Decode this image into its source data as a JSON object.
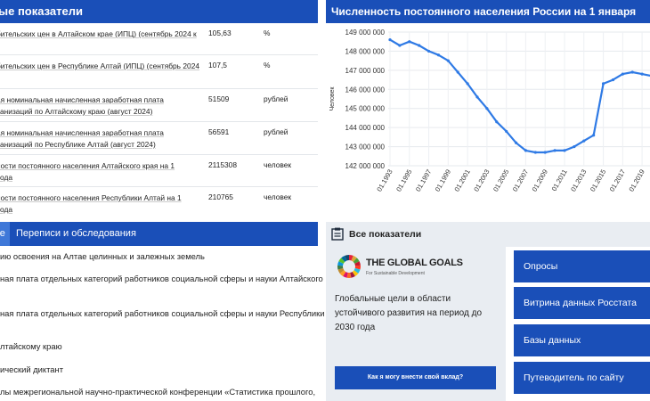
{
  "indicators": {
    "header": "ые показатели",
    "rows": [
      {
        "name_line1": "бительских цен в Алтайском крае (ИПЦ) (сентябрь 2024 к",
        "name_line2": "",
        "value": "105,63",
        "unit": "%"
      },
      {
        "name_line1": "бительских цен в Республике Алтай (ИПЦ) (сентябрь 2024",
        "name_line2": "",
        "value": "107,5",
        "unit": "%"
      },
      {
        "name_line1": "ая номинальная начисленная заработная плата",
        "name_line2": "анизаций по Алтайскому краю (август 2024)",
        "value": "51509",
        "unit": "рублей"
      },
      {
        "name_line1": "ая номинальная начисленная заработная плата",
        "name_line2": "анизаций по Республике Алтай (август 2024)",
        "value": "56591",
        "unit": "рублей"
      },
      {
        "name_line1": "ности постоянного населения Алтайского края на 1",
        "name_line2": "ода",
        "value": "2115308",
        "unit": "человек"
      },
      {
        "name_line1": "ности постоянного населения Республики Алтай на 1",
        "name_line2": "ода",
        "value": "210765",
        "unit": "человек"
      }
    ]
  },
  "tabs": {
    "tab1_label": "ве",
    "tab2_label": "Переписи и обследования"
  },
  "news": [
    {
      "line1": "ию освоения на Алтае целинных и залежных земель",
      "line2": ""
    },
    {
      "line1": "ная плата отдельных категорий работников социальной сферы и науки Алтайского",
      "line2": ""
    },
    {
      "line1": "ная плата отдельных категорий работников социальной сферы и науки Республики",
      "line2": ""
    },
    {
      "line1": "лтайскому краю",
      "line2": ""
    },
    {
      "line1": "ический диктант",
      "line2": ""
    },
    {
      "line1": "лы межрегиональной научно-практической конференции «Статистика прошлого,",
      "line2": ""
    }
  ],
  "all_indicators": {
    "label": "Все показатели",
    "icon": "clipboard-icon"
  },
  "goals_card": {
    "logo_title": "THE GLOBAL GOALS",
    "logo_subtitle": "For Sustainable Development",
    "text": "Глобальные цели в области устойчивого развития на период до 2030 года",
    "button": "Как я могу внести свой вклад?"
  },
  "side_buttons": [
    "Опросы",
    "Витрина данных Росстата",
    "Базы данных",
    "Путеводитель по сайту"
  ],
  "colors": {
    "primary": "#1a4fb8",
    "line": "#2f7ae5",
    "panel": "#e9edf2"
  },
  "chart_data": {
    "type": "line",
    "title": "Численность постоянного населения России на 1 января",
    "ylabel": "Человек",
    "xlabel": "",
    "ylim": [
      142000000,
      149000000
    ],
    "yticks": [
      142000000,
      143000000,
      144000000,
      145000000,
      146000000,
      147000000,
      148000000,
      149000000
    ],
    "ytick_labels": [
      "142 000 000",
      "143 000 000",
      "144 000 000",
      "145 000 000",
      "146 000 000",
      "147 000 000",
      "148 000 000",
      "149 000 000"
    ],
    "xtick_labels": [
      "01.1993",
      "01.1995",
      "01.1997",
      "01.1999",
      "01.2001",
      "01.2003",
      "01.2005",
      "01.2007",
      "01.2009",
      "01.2011",
      "01.2013",
      "01.2015",
      "01.2017",
      "01.2019"
    ],
    "series": [
      {
        "x": [
          1993,
          1994,
          1995,
          1996,
          1997,
          1998,
          1999,
          2000,
          2001,
          2002,
          2003,
          2004,
          2005,
          2006,
          2007,
          2008,
          2009,
          2010,
          2011,
          2012,
          2013,
          2014,
          2015,
          2016,
          2017,
          2018,
          2019,
          2020
        ],
        "values": [
          148600000,
          148300000,
          148500000,
          148300000,
          148000000,
          147800000,
          147500000,
          146900000,
          146300000,
          145600000,
          145000000,
          144300000,
          143800000,
          143200000,
          142800000,
          142700000,
          142700000,
          142800000,
          142800000,
          143000000,
          143300000,
          143600000,
          146300000,
          146500000,
          146800000,
          146900000,
          146800000,
          146700000
        ]
      }
    ]
  }
}
